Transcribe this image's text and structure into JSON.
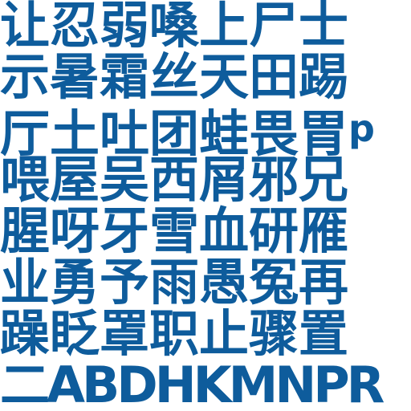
{
  "text_color": "#0e5c9c",
  "background": "#ffffff",
  "lines": [
    "让忍弱嗓上尸士",
    "示暑霜丝天田踢",
    "厅土吐团蛙畏胃",
    "喂屋吴西屑邪兄",
    "腥呀牙雪血研雁",
    "业勇予雨愚冤再",
    "躁眨罩职止骤置",
    "二ABDHKMNPR"
  ],
  "line2_tail": "p"
}
